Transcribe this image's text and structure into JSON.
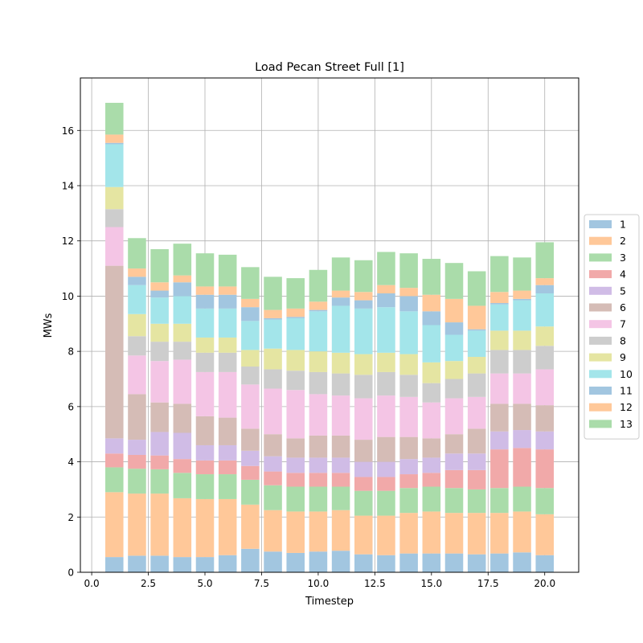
{
  "chart_data": {
    "type": "bar",
    "stacked": true,
    "title": "Load Pecan Street Full [1]",
    "xlabel": "Timestep",
    "ylabel": "MWs",
    "xlim": [
      -0.5,
      21.5
    ],
    "ylim": [
      0,
      17.9
    ],
    "xticks": [
      "0.0",
      "2.5",
      "5.0",
      "7.5",
      "10.0",
      "12.5",
      "15.0",
      "17.5",
      "20.0"
    ],
    "yticks": [
      "0",
      "2",
      "4",
      "6",
      "8",
      "10",
      "12",
      "14",
      "16"
    ],
    "grid": true,
    "legend_position": "right",
    "bar_width": 0.8,
    "x": [
      1,
      2,
      3,
      4,
      5,
      6,
      7,
      8,
      9,
      10,
      11,
      12,
      13,
      14,
      15,
      16,
      17,
      18,
      19,
      20
    ],
    "series": [
      {
        "name": "1",
        "color": "#a2c6e0",
        "values": [
          0.55,
          0.6,
          0.6,
          0.55,
          0.55,
          0.62,
          0.85,
          0.75,
          0.7,
          0.75,
          0.78,
          0.65,
          0.62,
          0.68,
          0.68,
          0.68,
          0.65,
          0.68,
          0.72,
          0.62
        ]
      },
      {
        "name": "2",
        "color": "#ffc899",
        "values": [
          2.35,
          2.25,
          2.25,
          2.13,
          2.1,
          2.03,
          1.6,
          1.5,
          1.5,
          1.45,
          1.47,
          1.4,
          1.43,
          1.47,
          1.52,
          1.47,
          1.5,
          1.47,
          1.48,
          1.48
        ]
      },
      {
        "name": "3",
        "color": "#aadcaa",
        "values": [
          0.9,
          0.9,
          0.88,
          0.92,
          0.9,
          0.9,
          0.9,
          0.9,
          0.9,
          0.9,
          0.85,
          0.9,
          0.9,
          0.9,
          0.9,
          0.9,
          0.85,
          0.9,
          0.9,
          0.95
        ]
      },
      {
        "name": "4",
        "color": "#f1a9a9",
        "values": [
          0.5,
          0.5,
          0.5,
          0.5,
          0.5,
          0.5,
          0.5,
          0.5,
          0.5,
          0.5,
          0.5,
          0.5,
          0.5,
          0.5,
          0.5,
          0.65,
          0.7,
          1.4,
          1.4,
          1.4
        ]
      },
      {
        "name": "5",
        "color": "#d0bce6",
        "values": [
          0.55,
          0.55,
          0.85,
          0.95,
          0.55,
          0.55,
          0.55,
          0.55,
          0.55,
          0.55,
          0.55,
          0.55,
          0.55,
          0.55,
          0.55,
          0.6,
          0.6,
          0.65,
          0.65,
          0.65
        ]
      },
      {
        "name": "6",
        "color": "#d5bcb6",
        "values": [
          6.25,
          1.65,
          1.07,
          1.05,
          1.05,
          1.0,
          0.8,
          0.8,
          0.7,
          0.8,
          0.8,
          0.8,
          0.9,
          0.8,
          0.7,
          0.7,
          0.9,
          1.0,
          0.95,
          0.95
        ]
      },
      {
        "name": "7",
        "color": "#f4c5e5",
        "values": [
          1.4,
          1.4,
          1.5,
          1.6,
          1.6,
          1.65,
          1.6,
          1.65,
          1.75,
          1.5,
          1.45,
          1.5,
          1.5,
          1.45,
          1.3,
          1.3,
          1.15,
          1.1,
          1.1,
          1.3
        ]
      },
      {
        "name": "8",
        "color": "#cdcdcd",
        "values": [
          0.65,
          0.7,
          0.7,
          0.65,
          0.7,
          0.7,
          0.65,
          0.7,
          0.7,
          0.8,
          0.8,
          0.85,
          0.85,
          0.8,
          0.7,
          0.7,
          0.85,
          0.85,
          0.85,
          0.85
        ]
      },
      {
        "name": "9",
        "color": "#e5e5a2",
        "values": [
          0.8,
          0.8,
          0.65,
          0.65,
          0.55,
          0.55,
          0.6,
          0.75,
          0.75,
          0.75,
          0.75,
          0.75,
          0.7,
          0.75,
          0.75,
          0.65,
          0.6,
          0.7,
          0.7,
          0.7
        ]
      },
      {
        "name": "10",
        "color": "#a3e5ea",
        "values": [
          1.55,
          1.05,
          0.95,
          1.0,
          1.05,
          1.05,
          1.05,
          1.05,
          1.15,
          1.45,
          1.7,
          1.65,
          1.65,
          1.55,
          1.35,
          0.95,
          0.95,
          0.95,
          1.1,
          1.2
        ]
      },
      {
        "name": "11",
        "color": "#a2c6e0",
        "values": [
          0.05,
          0.3,
          0.25,
          0.5,
          0.5,
          0.5,
          0.5,
          0.05,
          0.05,
          0.05,
          0.3,
          0.3,
          0.5,
          0.55,
          0.5,
          0.45,
          0.05,
          0.05,
          0.05,
          0.3
        ]
      },
      {
        "name": "12",
        "color": "#ffc899",
        "values": [
          0.3,
          0.3,
          0.3,
          0.25,
          0.3,
          0.3,
          0.3,
          0.3,
          0.3,
          0.3,
          0.25,
          0.3,
          0.3,
          0.3,
          0.6,
          0.85,
          0.85,
          0.4,
          0.3,
          0.25
        ]
      },
      {
        "name": "13",
        "color": "#aadcaa",
        "values": [
          1.15,
          1.1,
          1.2,
          1.15,
          1.2,
          1.15,
          1.15,
          1.2,
          1.1,
          1.15,
          1.2,
          1.15,
          1.2,
          1.25,
          1.3,
          1.3,
          1.25,
          1.3,
          1.2,
          1.3
        ]
      }
    ]
  }
}
